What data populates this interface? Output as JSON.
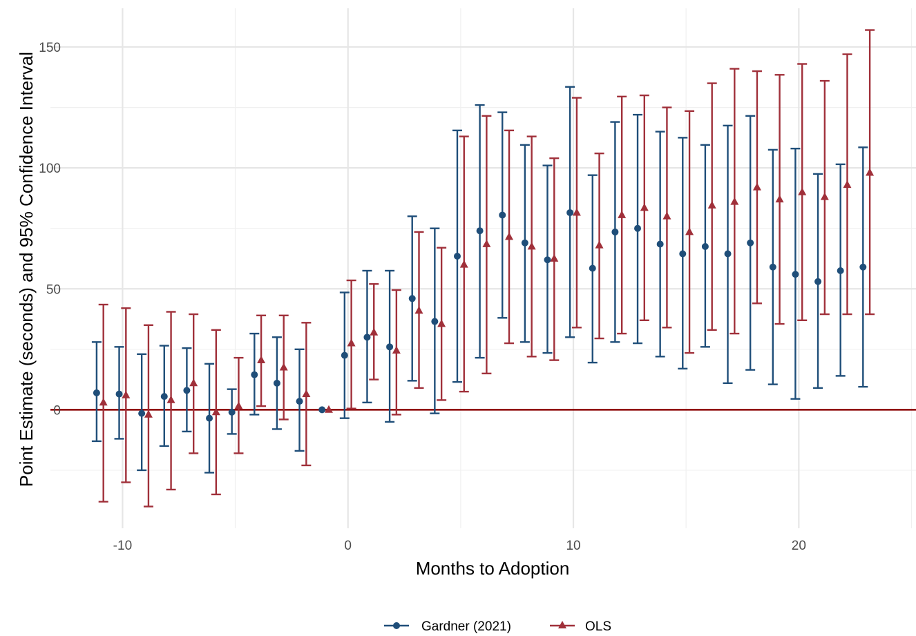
{
  "chart_data": {
    "type": "errorbar",
    "xlabel": "Months to Adoption",
    "ylabel": "Point Estimate (seconds) and 95% Confidence Interval",
    "xlim": [
      -13.2,
      25.2
    ],
    "ylim": [
      -49,
      166
    ],
    "x_ticks": [
      -10,
      0,
      10,
      20
    ],
    "x_tick_labels": [
      "-10",
      "0",
      "10",
      "20"
    ],
    "y_ticks": [
      0,
      50,
      100,
      150
    ],
    "y_tick_labels": [
      "0",
      "50",
      "100",
      "150"
    ],
    "grid": true,
    "reference_line": {
      "y": 0,
      "color": "#8b0000"
    },
    "legend_position": "bottom",
    "series": [
      {
        "name": "Gardner (2021)",
        "color": "#1f4e79",
        "marker": "circle",
        "x_offset": -0.15,
        "x": [
          -11,
          -10,
          -9,
          -8,
          -7,
          -6,
          -5,
          -4,
          -3,
          -2,
          -1,
          0,
          1,
          2,
          3,
          4,
          5,
          6,
          7,
          8,
          9,
          10,
          11,
          12,
          13,
          14,
          15,
          16,
          17,
          18,
          19,
          20,
          21,
          22,
          23
        ],
        "y": [
          7,
          6.5,
          -1.5,
          5.5,
          8,
          -3.5,
          -1,
          14.5,
          11,
          3.5,
          0,
          22.5,
          30,
          26,
          46,
          36.5,
          63.5,
          74,
          80.5,
          69,
          62,
          81.5,
          58.5,
          73.5,
          75,
          68.5,
          64.5,
          67.5,
          64.5,
          69,
          59,
          56,
          53,
          57.5,
          59
        ],
        "lower": [
          -13,
          -12,
          -25,
          -15,
          -9,
          -26,
          -10,
          -2,
          -8,
          -17,
          0,
          -3.5,
          3,
          -5,
          12,
          -1.5,
          11.5,
          21.5,
          38,
          28,
          23.5,
          30,
          19.5,
          28,
          27.5,
          22,
          17,
          26,
          11,
          16.5,
          10.5,
          4.5,
          9,
          14,
          9.5
        ],
        "upper": [
          28,
          26,
          23,
          26.5,
          25.5,
          19,
          8.5,
          31.5,
          30,
          25,
          0,
          48.5,
          57.5,
          57.5,
          80,
          75,
          115.5,
          126,
          123,
          109.5,
          101,
          133.5,
          97,
          119,
          122,
          115,
          112.5,
          109.5,
          117.5,
          121.5,
          107.5,
          108,
          97.5,
          101.5,
          108.5
        ]
      },
      {
        "name": "OLS",
        "color": "#a0303a",
        "marker": "triangle",
        "x_offset": 0.15,
        "x": [
          -11,
          -10,
          -9,
          -8,
          -7,
          -6,
          -5,
          -4,
          -3,
          -2,
          -1,
          0,
          1,
          2,
          3,
          4,
          5,
          6,
          7,
          8,
          9,
          10,
          11,
          12,
          13,
          14,
          15,
          16,
          17,
          18,
          19,
          20,
          21,
          22,
          23
        ],
        "y": [
          3,
          6,
          -2,
          4,
          11,
          -1,
          1.5,
          20.5,
          17.5,
          6.5,
          0,
          27.5,
          32,
          24.5,
          41,
          35.5,
          60,
          68.5,
          71.5,
          67.5,
          62.5,
          81.5,
          68,
          80.5,
          83.5,
          80,
          73.5,
          84.5,
          86,
          92,
          87,
          90,
          88,
          93,
          98
        ],
        "lower": [
          -38,
          -30,
          -40,
          -33,
          -18,
          -35,
          -18,
          1.5,
          -4,
          -23,
          0,
          0.5,
          12.5,
          -2,
          9,
          4,
          7.5,
          15,
          27.5,
          22,
          20.5,
          34,
          29.5,
          31.5,
          37,
          34,
          23.5,
          33,
          31.5,
          44,
          35.5,
          37,
          39.5,
          39.5,
          39.5
        ],
        "upper": [
          43.5,
          42,
          35,
          40.5,
          39.5,
          33,
          21.5,
          39,
          39,
          36,
          0,
          53.5,
          52,
          49.5,
          73.5,
          67,
          113,
          121.5,
          115.5,
          113,
          104,
          129,
          106,
          129.5,
          130,
          125,
          123.5,
          135,
          141,
          140,
          138.5,
          143,
          136,
          147,
          157
        ]
      }
    ]
  }
}
